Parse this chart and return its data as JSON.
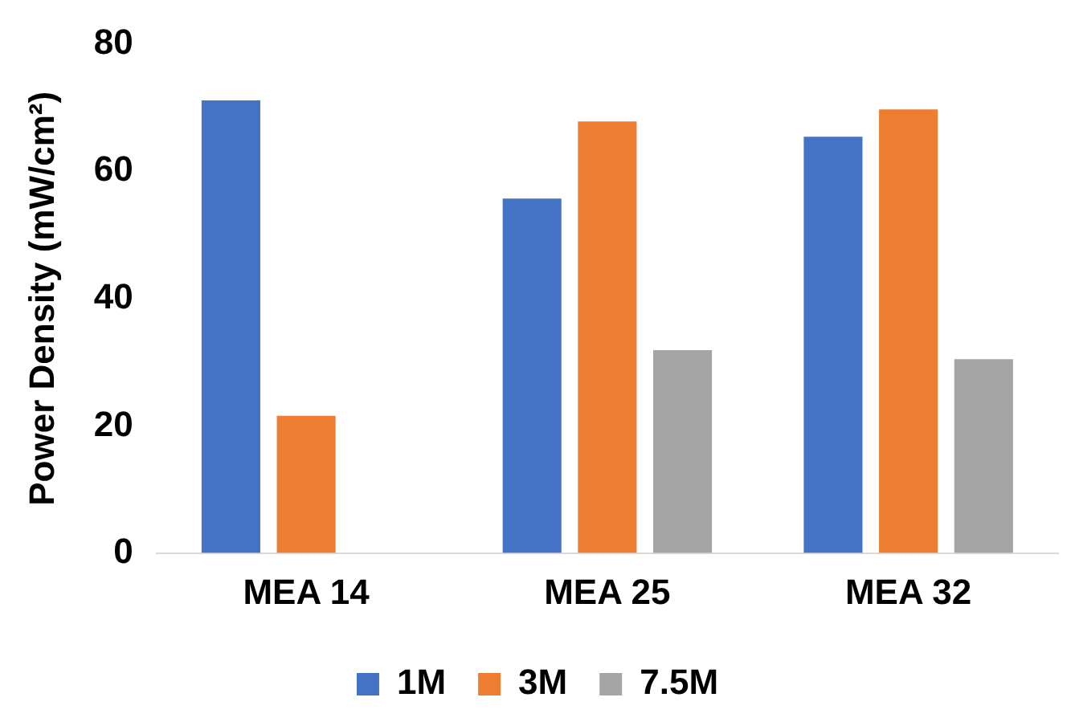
{
  "chart_data": {
    "type": "bar",
    "ylabel": "Power Density (mW/cm²)",
    "categories": [
      "MEA 14",
      "MEA 25",
      "MEA 32"
    ],
    "series": [
      {
        "name": "1M",
        "color": "#4472c4",
        "values": [
          71.1,
          55.7,
          65.4
        ]
      },
      {
        "name": "3M",
        "color": "#ed7d31",
        "values": [
          21.6,
          67.8,
          69.7
        ]
      },
      {
        "name": "7.5M",
        "color": "#a5a5a5",
        "values": [
          null,
          31.9,
          30.5
        ]
      }
    ],
    "ylim": [
      0,
      80
    ],
    "yticks": [
      0,
      20,
      40,
      60,
      80
    ],
    "grid": false,
    "legend": "bottom"
  }
}
